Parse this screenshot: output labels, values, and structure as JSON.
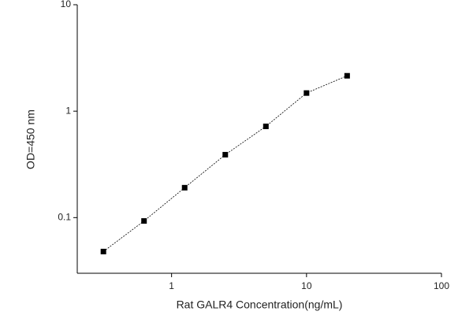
{
  "chart_data": {
    "type": "line",
    "x_label": "Rat GALR4 Concentration(ng/mL)",
    "y_label": "OD=450 nm",
    "x": [
      0.3125,
      0.625,
      1.25,
      2.5,
      5,
      10,
      20
    ],
    "values": [
      0.048,
      0.093,
      0.191,
      0.39,
      0.72,
      1.48,
      2.15
    ],
    "color": "#000000",
    "x_log": true,
    "y_log": true,
    "xlim": [
      0.2,
      100
    ],
    "xticks": [
      1,
      10,
      100
    ],
    "ylim": [
      0.03,
      10
    ],
    "yticks": [
      0.1,
      1,
      10
    ]
  }
}
